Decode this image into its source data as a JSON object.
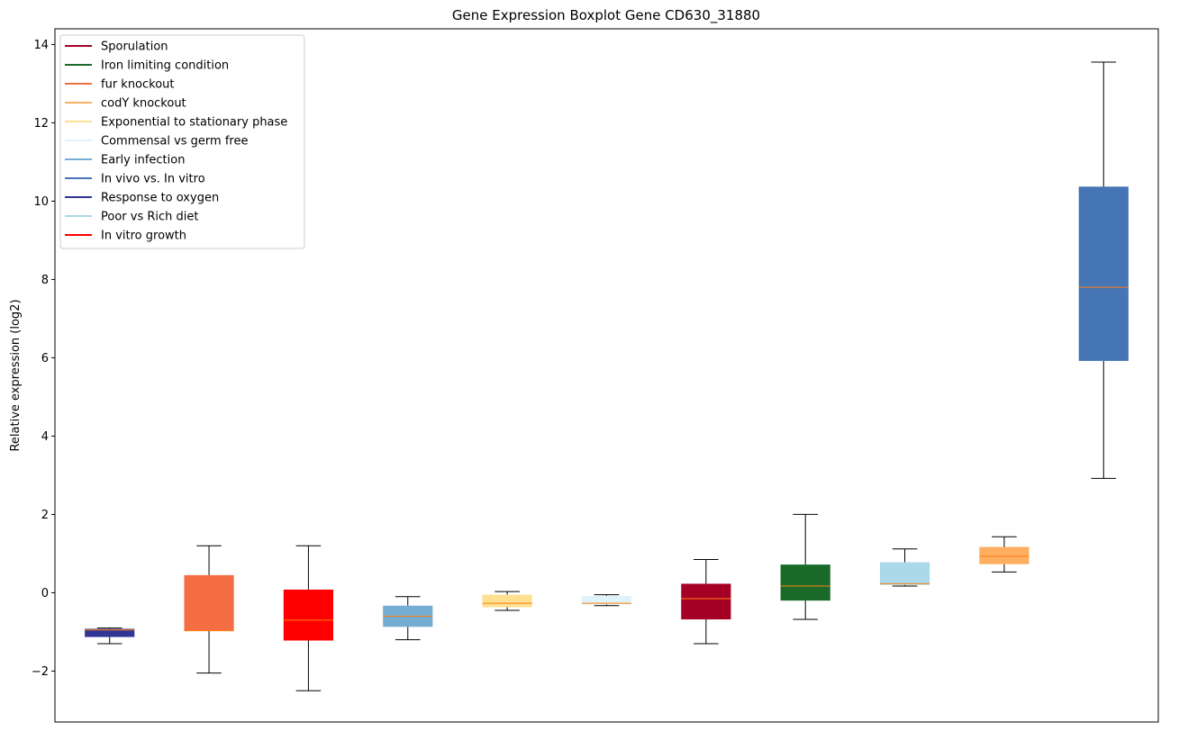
{
  "chart_data": {
    "type": "boxplot",
    "title": "Gene Expression Boxplot Gene CD630_31880",
    "xlabel": "",
    "ylabel": "Relative expression (log2)",
    "ylim": [
      -3.3,
      14.4
    ],
    "yticks": [
      -2,
      0,
      2,
      4,
      6,
      8,
      10,
      12,
      14
    ],
    "ytick_labels": [
      "−2",
      "0",
      "2",
      "4",
      "6",
      "8",
      "10",
      "12",
      "14"
    ],
    "grid": false,
    "legend_position": "upper-left",
    "legend": [
      {
        "label": "Sporulation",
        "color": "#a50026"
      },
      {
        "label": "Iron limiting condition",
        "color": "#1a6b2a"
      },
      {
        "label": "fur knockout",
        "color": "#f46d43"
      },
      {
        "label": "codY knockout",
        "color": "#fdae61"
      },
      {
        "label": "Exponential to stationary phase",
        "color": "#fee090"
      },
      {
        "label": "Commensal vs germ free",
        "color": "#e0f3f8"
      },
      {
        "label": "Early infection",
        "color": "#74add1"
      },
      {
        "label": "In vivo vs. In vitro",
        "color": "#4575b4"
      },
      {
        "label": "Response to oxygen",
        "color": "#313695"
      },
      {
        "label": "Poor vs Rich diet",
        "color": "#abd9e9"
      },
      {
        "label": "In vitro growth",
        "color": "#ff0000"
      }
    ],
    "boxes": [
      {
        "color": "#313695",
        "whislo": -1.3,
        "q1": -1.13,
        "med": -0.95,
        "q3": -0.92,
        "whishi": -0.9
      },
      {
        "color": "#f46d43",
        "whislo": -2.05,
        "q1": -0.97,
        "med": -0.97,
        "q3": 0.45,
        "whishi": 1.2
      },
      {
        "color": "#ff0000",
        "whislo": -2.5,
        "q1": -1.22,
        "med": -0.7,
        "q3": 0.08,
        "whishi": 1.2
      },
      {
        "color": "#74add1",
        "whislo": -1.2,
        "q1": -0.87,
        "med": -0.6,
        "q3": -0.33,
        "whishi": -0.1
      },
      {
        "color": "#fee090",
        "whislo": -0.45,
        "q1": -0.37,
        "med": -0.27,
        "q3": -0.05,
        "whishi": 0.03
      },
      {
        "color": "#e0f3f8",
        "whislo": -0.33,
        "q1": -0.3,
        "med": -0.27,
        "q3": -0.08,
        "whishi": -0.05
      },
      {
        "color": "#a50026",
        "whislo": -1.3,
        "q1": -0.68,
        "med": -0.15,
        "q3": 0.23,
        "whishi": 0.85
      },
      {
        "color": "#1a6b2a",
        "whislo": -0.68,
        "q1": -0.2,
        "med": 0.17,
        "q3": 0.72,
        "whishi": 2.0
      },
      {
        "color": "#abd9e9",
        "whislo": 0.17,
        "q1": 0.2,
        "med": 0.23,
        "q3": 0.78,
        "whishi": 1.12
      },
      {
        "color": "#fdae61",
        "whislo": 0.53,
        "q1": 0.73,
        "med": 0.93,
        "q3": 1.17,
        "whishi": 1.43
      },
      {
        "color": "#4575b4",
        "whislo": 2.92,
        "q1": 5.92,
        "med": 7.8,
        "q3": 10.37,
        "whishi": 13.55
      }
    ],
    "median_color": "#ff7f0e",
    "whisker_color": "#000000"
  }
}
